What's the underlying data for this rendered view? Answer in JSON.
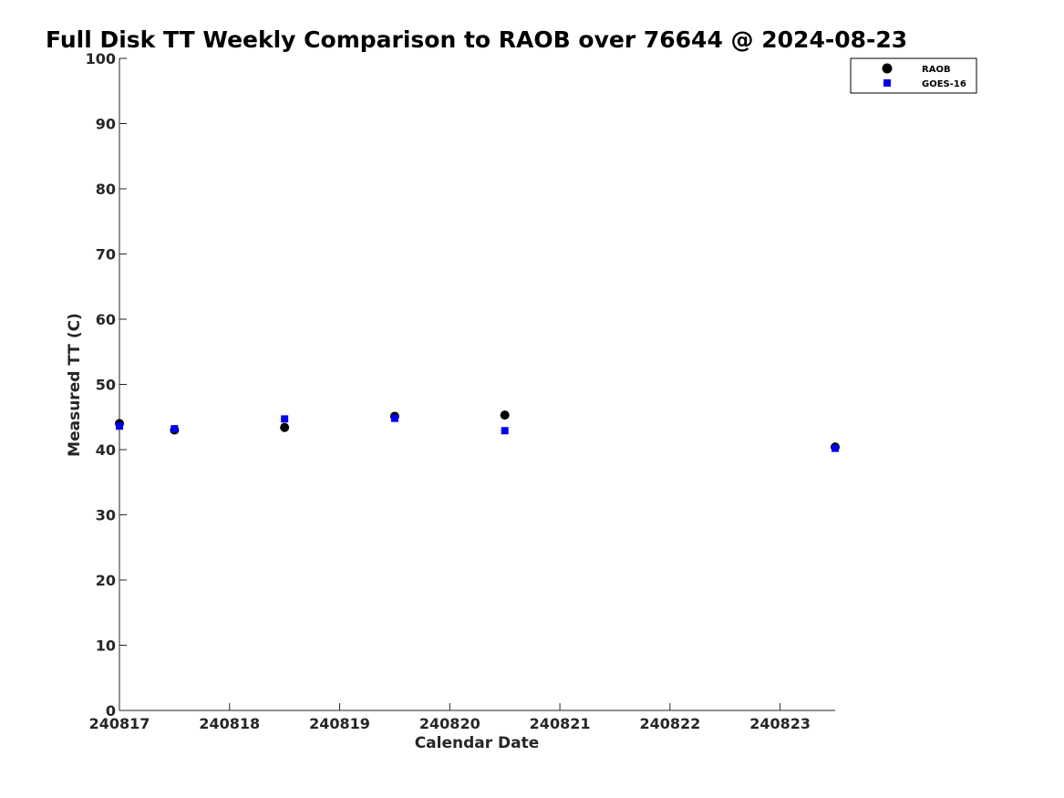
{
  "chart_data": {
    "type": "scatter",
    "title": "Full Disk TT Weekly Comparison to RAOB over 76644 @ 2024-08-23",
    "xlabel": "Calendar Date",
    "ylabel": "Measured TT (C)",
    "x_ticks": [
      "240817",
      "240818",
      "240819",
      "240820",
      "240821",
      "240822",
      "240823"
    ],
    "y_ticks": [
      "0",
      "10",
      "20",
      "30",
      "40",
      "50",
      "60",
      "70",
      "80",
      "90",
      "100"
    ],
    "xlim": [
      "240817",
      "240823.5"
    ],
    "ylim": [
      0,
      100
    ],
    "grid": false,
    "legend_position": "top-right",
    "series": [
      {
        "name": "RAOB",
        "marker": "circle",
        "color": "#000000",
        "points": [
          {
            "x": "240817",
            "y": 44.0
          },
          {
            "x": "240817.5",
            "y": 43.0
          },
          {
            "x": "240818.5",
            "y": 43.4
          },
          {
            "x": "240819.5",
            "y": 45.1
          },
          {
            "x": "240820.5",
            "y": 45.3
          },
          {
            "x": "240823.5",
            "y": 40.4
          }
        ]
      },
      {
        "name": "GOES-16",
        "marker": "square",
        "color": "#0000ee",
        "points": [
          {
            "x": "240817",
            "y": 43.6
          },
          {
            "x": "240817.5",
            "y": 43.2
          },
          {
            "x": "240818.5",
            "y": 44.7
          },
          {
            "x": "240819.5",
            "y": 44.8
          },
          {
            "x": "240820.5",
            "y": 42.9
          },
          {
            "x": "240823.5",
            "y": 40.2
          }
        ]
      }
    ]
  }
}
